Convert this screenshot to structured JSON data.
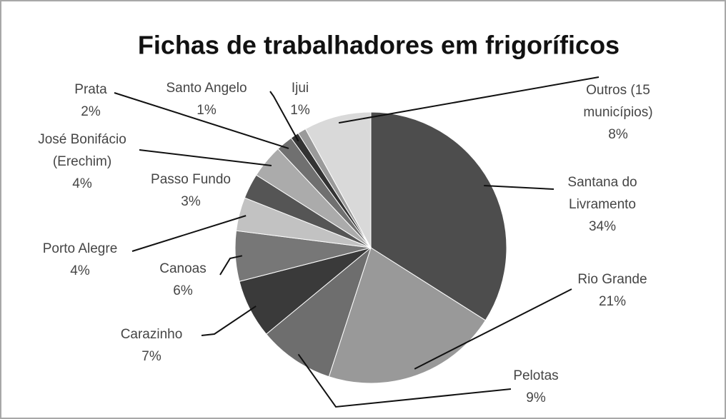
{
  "chart_data": {
    "type": "pie",
    "title": "Fichas de trabalhadores em frigoríficos",
    "categories": [
      "Santana do Livramento",
      "Rio Grande",
      "Pelotas",
      "Carazinho",
      "Canoas",
      "Porto Alegre",
      "Passo Fundo",
      "José Bonifácio (Erechim)",
      "Prata",
      "Santo Angelo",
      "Ijui",
      "Outros (15 municípios)"
    ],
    "values": [
      34,
      21,
      9,
      7,
      6,
      4,
      3,
      4,
      2,
      1,
      1,
      8
    ],
    "value_labels": [
      "34%",
      "21%",
      "9%",
      "7%",
      "6%",
      "4%",
      "3%",
      "4%",
      "2%",
      "1%",
      "1%",
      "8%"
    ],
    "colors": [
      "#4d4d4d",
      "#999999",
      "#6e6e6e",
      "#3a3a3a",
      "#777777",
      "#c2c2c2",
      "#555555",
      "#ababab",
      "#707070",
      "#333333",
      "#9a9a9a",
      "#d9d9d9"
    ]
  }
}
